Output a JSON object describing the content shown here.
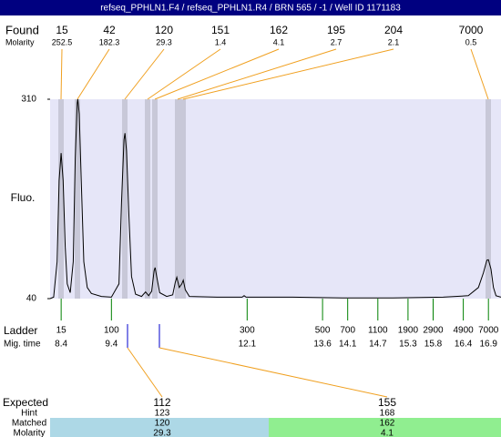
{
  "header": {
    "title": "refseq_PPHLN1.F4 / refseq_PPHLN1.R4 / BRN 565 / -1 / Well ID 1171183"
  },
  "found": {
    "label": "Found",
    "molarity_label": "Molarity",
    "sizes": [
      15,
      42,
      120,
      151,
      162,
      195,
      204,
      7000
    ],
    "molarity": [
      252.5,
      182.3,
      29.3,
      1.4,
      4.1,
      2.7,
      2.1,
      0.5
    ]
  },
  "chart_data": {
    "type": "line",
    "y_label": "Fluo.",
    "color": "#000000",
    "x": [
      8.18,
      8.25,
      8.32,
      8.36,
      8.4,
      8.44,
      8.48,
      8.52,
      8.58,
      8.64,
      8.68,
      8.72,
      8.73,
      8.76,
      8.8,
      8.85,
      8.92,
      9.0,
      9.2,
      9.4,
      9.55,
      9.6,
      9.65,
      9.67,
      9.7,
      9.75,
      9.8,
      9.88,
      10.0,
      10.08,
      10.14,
      10.2,
      10.25,
      10.27,
      10.3,
      10.36,
      10.5,
      10.62,
      10.67,
      10.7,
      10.75,
      10.8,
      10.83,
      10.87,
      10.95,
      11.5,
      12.0,
      12.04,
      12.08,
      13.0,
      14.0,
      15.0,
      16.0,
      16.5,
      16.7,
      16.8,
      16.87,
      16.9,
      16.95,
      17.0,
      17.05,
      17.15
    ],
    "values": [
      40,
      42,
      90,
      200,
      237,
      200,
      110,
      60,
      48,
      90,
      230,
      305,
      310,
      290,
      200,
      90,
      55,
      47,
      43,
      42,
      60,
      170,
      255,
      264,
      240,
      150,
      70,
      46,
      43,
      49,
      44,
      50,
      78,
      82,
      70,
      48,
      43,
      45,
      62,
      69,
      55,
      60,
      65,
      52,
      43,
      42,
      42,
      44,
      42,
      42,
      41,
      41,
      42,
      44,
      55,
      75,
      92,
      92.5,
      80,
      55,
      44,
      42
    ],
    "xlim": [
      8.18,
      17.15
    ],
    "ylim": [
      40,
      310
    ],
    "yticks": [
      40,
      310
    ]
  },
  "ladder": {
    "label": "Ladder",
    "time_label": "Mig. time",
    "sizes": [
      15,
      100,
      300,
      500,
      700,
      1100,
      1900,
      2900,
      4900,
      7000
    ],
    "times": [
      8.4,
      9.4,
      12.1,
      13.6,
      14.1,
      14.7,
      15.3,
      15.8,
      16.4,
      16.9
    ]
  },
  "expected": {
    "labels": [
      "Expected",
      "Hint",
      "Matched",
      "Molarity"
    ],
    "columns": [
      {
        "expected": 112,
        "hint": 123,
        "matched": 120,
        "molarity": 29.3
      },
      {
        "expected": 155,
        "hint": 168,
        "matched": 162,
        "molarity": 4.1
      }
    ]
  }
}
